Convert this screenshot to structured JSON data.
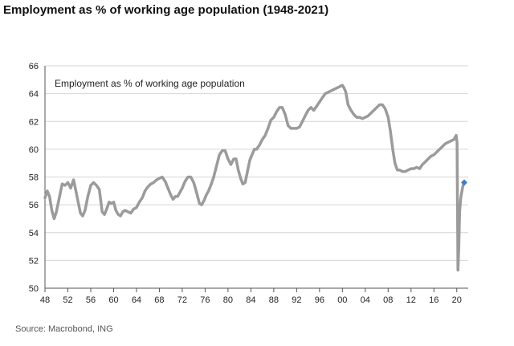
{
  "title": "Employment as % of working age population (1948-2021)",
  "source": "Source: Macrobond, ING",
  "colors": {
    "line": "#9b9b9b",
    "marker": "#3f7ec4",
    "grid": "#d6d6d6",
    "axis": "#555555"
  },
  "chart_data": {
    "type": "line",
    "title": "",
    "xlabel": "",
    "ylabel": "",
    "xlim": [
      1948,
      2022
    ],
    "ylim": [
      50,
      66
    ],
    "grid": true,
    "x_ticks": [
      1948,
      1952,
      1956,
      1960,
      1964,
      1968,
      1972,
      1976,
      1980,
      1984,
      1988,
      1992,
      1996,
      2000,
      2004,
      2008,
      2012,
      2016,
      2020
    ],
    "x_tick_labels": [
      "48",
      "52",
      "56",
      "60",
      "64",
      "68",
      "72",
      "76",
      "80",
      "84",
      "88",
      "92",
      "96",
      "00",
      "04",
      "08",
      "12",
      "16",
      "20"
    ],
    "y_ticks": [
      50,
      52,
      54,
      56,
      58,
      60,
      62,
      64,
      66
    ],
    "y_tick_labels": [
      "50",
      "52",
      "54",
      "56",
      "58",
      "60",
      "62",
      "64",
      "66"
    ],
    "series": [
      {
        "name": "Employment as % of working age population",
        "x": [
          1948.0,
          1948.4,
          1948.8,
          1949.2,
          1949.6,
          1950.0,
          1950.5,
          1951.0,
          1951.5,
          1952.0,
          1952.5,
          1953.0,
          1953.4,
          1953.8,
          1954.2,
          1954.6,
          1955.0,
          1955.5,
          1956.0,
          1956.5,
          1957.0,
          1957.5,
          1958.0,
          1958.4,
          1958.8,
          1959.2,
          1959.6,
          1960.0,
          1960.4,
          1960.8,
          1961.2,
          1961.6,
          1962.0,
          1962.5,
          1963.0,
          1963.5,
          1964.0,
          1964.5,
          1965.0,
          1965.5,
          1966.0,
          1966.5,
          1967.0,
          1967.5,
          1968.0,
          1968.5,
          1969.0,
          1969.5,
          1970.0,
          1970.4,
          1970.8,
          1971.2,
          1971.6,
          1972.0,
          1972.5,
          1973.0,
          1973.5,
          1974.0,
          1974.5,
          1975.0,
          1975.4,
          1975.8,
          1976.2,
          1976.6,
          1977.0,
          1977.5,
          1978.0,
          1978.5,
          1979.0,
          1979.5,
          1980.0,
          1980.5,
          1981.0,
          1981.4,
          1981.8,
          1982.2,
          1982.6,
          1983.0,
          1983.4,
          1983.8,
          1984.2,
          1984.6,
          1985.0,
          1985.5,
          1986.0,
          1986.5,
          1987.0,
          1987.5,
          1988.0,
          1988.5,
          1989.0,
          1989.5,
          1990.0,
          1990.5,
          1991.0,
          1991.5,
          1992.0,
          1992.5,
          1993.0,
          1993.5,
          1994.0,
          1994.5,
          1995.0,
          1995.5,
          1996.0,
          1996.5,
          1997.0,
          1997.5,
          1998.0,
          1998.5,
          1999.0,
          1999.5,
          2000.0,
          2000.3,
          2000.6,
          2001.0,
          2001.5,
          2002.0,
          2002.5,
          2003.0,
          2003.5,
          2004.0,
          2004.5,
          2005.0,
          2005.5,
          2006.0,
          2006.5,
          2007.0,
          2007.5,
          2008.0,
          2008.4,
          2008.8,
          2009.2,
          2009.6,
          2010.0,
          2010.5,
          2011.0,
          2011.5,
          2012.0,
          2012.5,
          2013.0,
          2013.5,
          2014.0,
          2014.5,
          2015.0,
          2015.5,
          2016.0,
          2016.5,
          2017.0,
          2017.5,
          2018.0,
          2018.5,
          2019.0,
          2019.5,
          2019.9,
          2020.05,
          2020.2,
          2020.35,
          2020.5,
          2020.7,
          2020.9,
          2021.1,
          2021.3
        ],
        "y": [
          56.5,
          57.0,
          56.6,
          55.6,
          55.0,
          55.5,
          56.5,
          57.5,
          57.4,
          57.6,
          57.2,
          57.8,
          57.0,
          56.2,
          55.4,
          55.2,
          55.6,
          56.6,
          57.4,
          57.6,
          57.4,
          57.1,
          55.5,
          55.3,
          55.7,
          56.2,
          56.1,
          56.2,
          55.6,
          55.3,
          55.2,
          55.5,
          55.6,
          55.5,
          55.4,
          55.7,
          55.8,
          56.2,
          56.5,
          57.0,
          57.3,
          57.5,
          57.6,
          57.8,
          57.9,
          58.0,
          57.7,
          57.2,
          56.7,
          56.4,
          56.6,
          56.6,
          56.9,
          57.2,
          57.7,
          58.0,
          58.0,
          57.6,
          56.9,
          56.1,
          56.0,
          56.3,
          56.7,
          57.0,
          57.4,
          58.0,
          58.8,
          59.6,
          59.9,
          59.9,
          59.3,
          58.9,
          59.3,
          59.3,
          58.5,
          57.9,
          57.5,
          57.6,
          58.4,
          59.2,
          59.6,
          60.0,
          60.0,
          60.3,
          60.7,
          61.0,
          61.5,
          62.1,
          62.3,
          62.7,
          63.0,
          63.0,
          62.5,
          61.7,
          61.5,
          61.5,
          61.5,
          61.6,
          62.0,
          62.4,
          62.8,
          63.0,
          62.8,
          63.1,
          63.4,
          63.7,
          64.0,
          64.1,
          64.2,
          64.3,
          64.4,
          64.5,
          64.6,
          64.4,
          64.1,
          63.2,
          62.8,
          62.5,
          62.3,
          62.3,
          62.2,
          62.3,
          62.4,
          62.6,
          62.8,
          63.0,
          63.2,
          63.2,
          62.9,
          62.3,
          61.3,
          60.0,
          59.0,
          58.5,
          58.5,
          58.4,
          58.4,
          58.5,
          58.6,
          58.6,
          58.7,
          58.6,
          58.9,
          59.1,
          59.3,
          59.5,
          59.6,
          59.8,
          60.0,
          60.2,
          60.4,
          60.5,
          60.6,
          60.7,
          61.0,
          60.5,
          51.3,
          52.8,
          55.5,
          56.5,
          57.0,
          57.4,
          57.6
        ]
      }
    ],
    "highlight_point": {
      "x": 2021.3,
      "y": 57.6
    }
  }
}
